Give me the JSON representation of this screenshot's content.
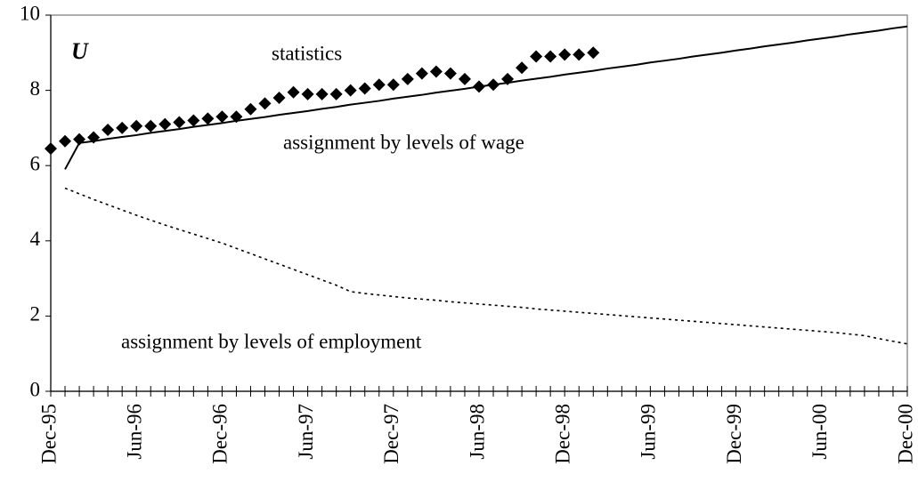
{
  "chart_data": {
    "type": "line",
    "ylabel": "U",
    "categories": [
      "Dec-95",
      null,
      null,
      null,
      null,
      null,
      "Jun-96",
      null,
      null,
      null,
      null,
      null,
      "Dec-96",
      null,
      null,
      null,
      null,
      null,
      "Jun-97",
      null,
      null,
      null,
      null,
      null,
      "Dec-97",
      null,
      null,
      null,
      null,
      null,
      "Jun-98",
      null,
      null,
      null,
      null,
      null,
      "Dec-98",
      null,
      null,
      null,
      null,
      null,
      "Jun-99",
      null,
      null,
      null,
      null,
      null,
      "Dec-99",
      null,
      null,
      null,
      null,
      null,
      "Jun-00",
      null,
      null,
      null,
      null,
      null,
      "Dec-00"
    ],
    "series": [
      {
        "name": "statistics",
        "color": "#000000",
        "marker": "diamond",
        "values": [
          6.45,
          6.65,
          6.7,
          6.75,
          6.95,
          7.0,
          7.05,
          7.05,
          7.1,
          7.15,
          7.2,
          7.25,
          7.3,
          7.3,
          7.5,
          7.65,
          7.8,
          7.95,
          7.9,
          7.9,
          7.9,
          8.0,
          8.05,
          8.15,
          8.15,
          8.3,
          8.45,
          8.5,
          8.45,
          8.3,
          8.1,
          8.15,
          8.3,
          8.6,
          8.9,
          8.9,
          8.95,
          8.95,
          9.0,
          null,
          null,
          null,
          null,
          null,
          null,
          null,
          null,
          null,
          null,
          null,
          null,
          null,
          null,
          null,
          null,
          null,
          null,
          null,
          null,
          null,
          null
        ]
      },
      {
        "name": "assignment by levels of wage",
        "color": "#000000",
        "dash": "solid",
        "values": [
          null,
          5.9,
          6.6,
          6.65,
          6.71,
          6.76,
          6.81,
          6.87,
          6.92,
          6.97,
          7.03,
          7.08,
          7.13,
          7.19,
          7.24,
          7.29,
          7.35,
          7.4,
          7.45,
          7.51,
          7.56,
          7.62,
          7.67,
          7.72,
          7.78,
          7.83,
          7.88,
          7.94,
          7.99,
          8.04,
          8.1,
          8.15,
          8.2,
          8.26,
          8.31,
          8.36,
          8.42,
          8.47,
          8.52,
          8.58,
          8.63,
          8.68,
          8.74,
          8.79,
          8.84,
          8.9,
          8.95,
          9.0,
          9.06,
          9.11,
          9.17,
          9.22,
          9.27,
          9.33,
          9.38,
          9.43,
          9.49,
          9.54,
          9.59,
          9.65,
          9.7
        ]
      },
      {
        "name": "assignment by levels of employment",
        "color": "#000000",
        "dash": "dotted",
        "values": [
          null,
          5.4,
          5.25,
          5.1,
          4.96,
          4.82,
          4.68,
          4.55,
          4.42,
          4.3,
          4.18,
          4.06,
          3.94,
          3.8,
          3.66,
          3.52,
          3.38,
          3.24,
          3.1,
          2.96,
          2.82,
          2.65,
          2.6,
          2.56,
          2.52,
          2.48,
          2.45,
          2.42,
          2.38,
          2.35,
          2.32,
          2.29,
          2.26,
          2.23,
          2.19,
          2.16,
          2.13,
          2.1,
          2.07,
          2.04,
          2.01,
          1.98,
          1.95,
          1.92,
          1.89,
          1.86,
          1.83,
          1.8,
          1.77,
          1.74,
          1.71,
          1.68,
          1.65,
          1.62,
          1.59,
          1.56,
          1.52,
          1.48,
          1.4,
          1.33,
          1.26
        ]
      }
    ],
    "ylim": [
      0,
      10
    ],
    "yticks": [
      0,
      2,
      4,
      6,
      8,
      10
    ],
    "grid": false
  }
}
